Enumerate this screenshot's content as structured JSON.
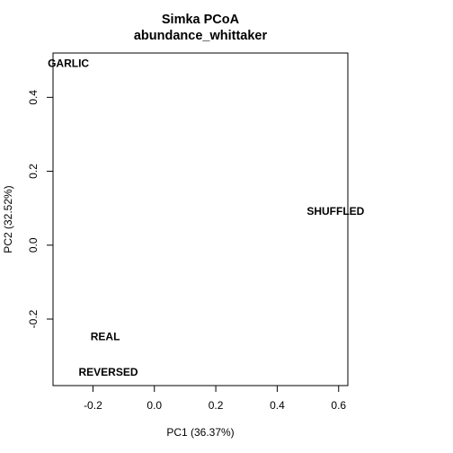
{
  "chart_data": {
    "type": "scatter",
    "title": "Simka PCoA",
    "subtitle": "abundance_whittaker",
    "xlabel": "PC1 (36.37%)",
    "ylabel": "PC2 (32.52%)",
    "xlim": [
      -0.33,
      0.63
    ],
    "ylim": [
      -0.38,
      0.52
    ],
    "xticks": [
      -0.2,
      0.0,
      0.2,
      0.4,
      0.6
    ],
    "xtick_labels": [
      "-0.2",
      "0.0",
      "0.2",
      "0.4",
      "0.6"
    ],
    "yticks": [
      -0.2,
      0.0,
      0.2,
      0.4
    ],
    "ytick_labels": [
      "-0.2",
      "0.0",
      "0.2",
      "0.4"
    ],
    "points": [
      {
        "label": "GARLIC",
        "x": -0.28,
        "y": 0.49
      },
      {
        "label": "SHUFFLED",
        "x": 0.59,
        "y": 0.09
      },
      {
        "label": "REAL",
        "x": -0.16,
        "y": -0.25
      },
      {
        "label": "REVERSED",
        "x": -0.15,
        "y": -0.345
      }
    ],
    "grid": false,
    "legend": "none",
    "colors": {
      "axis": "#000000",
      "text": "#000000",
      "background": "#ffffff"
    }
  }
}
